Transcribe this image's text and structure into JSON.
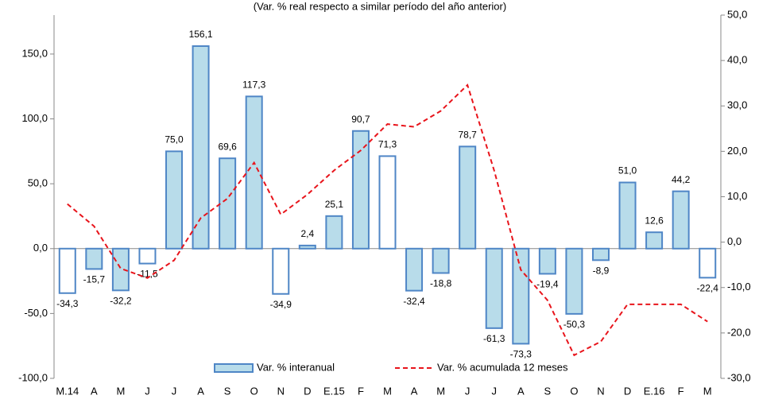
{
  "chart_data": {
    "type": "bar",
    "title": "(Var. % real respecto a similar período del año anterior)",
    "categories": [
      "M.14",
      "A",
      "M",
      "J",
      "J",
      "A",
      "S",
      "O",
      "N",
      "D",
      "E.15",
      "F",
      "M",
      "A",
      "M",
      "J",
      "J",
      "A",
      "S",
      "O",
      "N",
      "D",
      "E.16",
      "F",
      "M"
    ],
    "series": [
      {
        "name": "Var. % interanual",
        "type": "bar",
        "color": "#b8dcea",
        "stroke": "#4f86c6",
        "colors": [
          "#ffffff",
          "#b8dcea",
          "#b8dcea",
          "#ffffff",
          "#b8dcea",
          "#b8dcea",
          "#b8dcea",
          "#b8dcea",
          "#ffffff",
          "#b8dcea",
          "#b8dcea",
          "#b8dcea",
          "#ffffff",
          "#b8dcea",
          "#b8dcea",
          "#b8dcea",
          "#b8dcea",
          "#b8dcea",
          "#b8dcea",
          "#b8dcea",
          "#b8dcea",
          "#b8dcea",
          "#b8dcea",
          "#b8dcea",
          "#ffffff"
        ],
        "values": [
          -34.3,
          -15.7,
          -32.2,
          -11.5,
          75.0,
          156.1,
          69.6,
          117.3,
          -34.9,
          2.4,
          25.1,
          90.7,
          71.3,
          -32.4,
          -18.8,
          78.7,
          -61.3,
          -73.3,
          -19.4,
          -50.3,
          -8.9,
          51.0,
          12.6,
          44.2,
          -22.4
        ],
        "value_labels": [
          "-34,3",
          "-15,7",
          "-32,2",
          "-11,5",
          "75,0",
          "156,1",
          "69,6",
          "117,3",
          "-34,9",
          "2,4",
          "25,1",
          "90,7",
          "71,3",
          "-32,4",
          "-18,8",
          "78,7",
          "-61,3",
          "-73,3",
          "-19,4",
          "-50,3",
          "-8,9",
          "51,0",
          "12,6",
          "44,2",
          "-22,4"
        ]
      },
      {
        "name": "Var. % acumulada 12 meses",
        "type": "line",
        "axis": "y2",
        "color": "#e8141b",
        "values": [
          8.4,
          3.5,
          -5.8,
          -7.9,
          -4.0,
          5.3,
          9.6,
          17.5,
          6.1,
          10.5,
          15.8,
          20.2,
          26.0,
          25.4,
          28.9,
          34.6,
          15.8,
          -6.1,
          -12.8,
          -24.9,
          -21.9,
          -13.7,
          -13.7,
          -13.7,
          -17.5
        ]
      }
    ],
    "ylim": [
      -100,
      180
    ],
    "yticks": [
      {
        "value": -100,
        "label": "-100,0"
      },
      {
        "value": -50,
        "label": "-50,0"
      },
      {
        "value": 0,
        "label": "0,0"
      },
      {
        "value": 50,
        "label": "50,0"
      },
      {
        "value": 100,
        "label": "100,0"
      },
      {
        "value": 150,
        "label": "150,0"
      }
    ],
    "y2lim": [
      -30,
      50
    ],
    "y2ticks": [
      {
        "value": -30,
        "label": "-30,0"
      },
      {
        "value": -20,
        "label": "-20,0"
      },
      {
        "value": -10,
        "label": "-10,0"
      },
      {
        "value": 0,
        "label": "0,0"
      },
      {
        "value": 10,
        "label": "10,0"
      },
      {
        "value": 20,
        "label": "20,0"
      },
      {
        "value": 30,
        "label": "30,0"
      },
      {
        "value": 40,
        "label": "40,0"
      },
      {
        "value": 50,
        "label": "50,0"
      }
    ],
    "legend": "bottom",
    "grid": false
  }
}
